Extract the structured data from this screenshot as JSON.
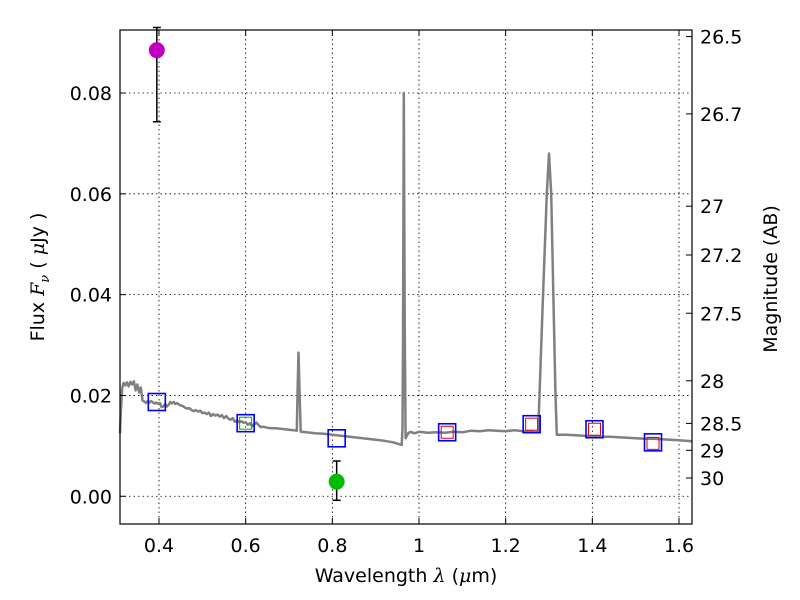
{
  "chart_data": {
    "type": "line",
    "title": "",
    "xlabel": {
      "prefix": "Wavelength",
      "symbol": "λ",
      "unit_open": "(",
      "unit_mu": "μ",
      "unit_m": "m",
      "unit_close": ")"
    },
    "ylabel": {
      "prefix": "Flux",
      "symbol": "F",
      "symbol_sub": "ν",
      "unit_open": "(",
      "unit_mu": "μ",
      "unit_jy": "Jy",
      "unit_close": ")"
    },
    "y2label": "Magnitude (AB)",
    "xlim": [
      0.31,
      1.63
    ],
    "ylim": [
      -0.0055,
      0.0925
    ],
    "grid": true,
    "x_ticks": [
      {
        "value": 0.4,
        "label": "0.4"
      },
      {
        "value": 0.6,
        "label": "0.6"
      },
      {
        "value": 0.8,
        "label": "0.8"
      },
      {
        "value": 1.0,
        "label": "1"
      },
      {
        "value": 1.2,
        "label": "1.2"
      },
      {
        "value": 1.4,
        "label": "1.4"
      },
      {
        "value": 1.6,
        "label": "1.6"
      }
    ],
    "y_ticks": [
      {
        "value": 0.0,
        "label": "0.00"
      },
      {
        "value": 0.02,
        "label": "0.02"
      },
      {
        "value": 0.04,
        "label": "0.04"
      },
      {
        "value": 0.06,
        "label": "0.06"
      },
      {
        "value": 0.08,
        "label": "0.08"
      }
    ],
    "y2_ticks": [
      {
        "label": "26.5",
        "mag": 26.5
      },
      {
        "label": "26.7",
        "mag": 26.7
      },
      {
        "label": "27",
        "mag": 27
      },
      {
        "label": "27.2",
        "mag": 27.2
      },
      {
        "label": "27.5",
        "mag": 27.5
      },
      {
        "label": "28",
        "mag": 28
      },
      {
        "label": "28.5",
        "mag": 28.5
      },
      {
        "label": "29",
        "mag": 29
      },
      {
        "label": "30",
        "mag": 30
      }
    ],
    "template_spectrum": {
      "name": "model SED",
      "color": "#808080",
      "points": [
        [
          0.31,
          0.0125
        ],
        [
          0.312,
          0.017
        ],
        [
          0.315,
          0.0215
        ],
        [
          0.318,
          0.0225
        ],
        [
          0.322,
          0.022
        ],
        [
          0.326,
          0.0226
        ],
        [
          0.33,
          0.0218
        ],
        [
          0.334,
          0.0227
        ],
        [
          0.338,
          0.0222
        ],
        [
          0.342,
          0.0228
        ],
        [
          0.346,
          0.021
        ],
        [
          0.35,
          0.0222
        ],
        [
          0.354,
          0.0206
        ],
        [
          0.358,
          0.0216
        ],
        [
          0.362,
          0.019
        ],
        [
          0.366,
          0.0188
        ],
        [
          0.37,
          0.0185
        ],
        [
          0.374,
          0.0189
        ],
        [
          0.378,
          0.0186
        ],
        [
          0.382,
          0.0189
        ],
        [
          0.386,
          0.0186
        ],
        [
          0.39,
          0.0184
        ],
        [
          0.394,
          0.0186
        ],
        [
          0.398,
          0.0183
        ],
        [
          0.402,
          0.0185
        ],
        [
          0.406,
          0.0177
        ],
        [
          0.41,
          0.0178
        ],
        [
          0.414,
          0.0183
        ],
        [
          0.418,
          0.0178
        ],
        [
          0.422,
          0.0181
        ],
        [
          0.426,
          0.0187
        ],
        [
          0.43,
          0.0184
        ],
        [
          0.434,
          0.0187
        ],
        [
          0.438,
          0.0183
        ],
        [
          0.442,
          0.0185
        ],
        [
          0.446,
          0.0182
        ],
        [
          0.45,
          0.018
        ],
        [
          0.455,
          0.0179
        ],
        [
          0.46,
          0.0176
        ],
        [
          0.465,
          0.0174
        ],
        [
          0.47,
          0.0175
        ],
        [
          0.475,
          0.0171
        ],
        [
          0.48,
          0.0169
        ],
        [
          0.485,
          0.0171
        ],
        [
          0.49,
          0.0168
        ],
        [
          0.495,
          0.017
        ],
        [
          0.5,
          0.0165
        ],
        [
          0.505,
          0.0166
        ],
        [
          0.51,
          0.0163
        ],
        [
          0.515,
          0.0166
        ],
        [
          0.52,
          0.0159
        ],
        [
          0.525,
          0.0163
        ],
        [
          0.53,
          0.016
        ],
        [
          0.535,
          0.0162
        ],
        [
          0.54,
          0.0158
        ],
        [
          0.545,
          0.0161
        ],
        [
          0.55,
          0.0155
        ],
        [
          0.555,
          0.0159
        ],
        [
          0.56,
          0.0154
        ],
        [
          0.565,
          0.0152
        ],
        [
          0.57,
          0.0155
        ],
        [
          0.575,
          0.0148
        ],
        [
          0.58,
          0.015
        ],
        [
          0.585,
          0.0147
        ],
        [
          0.59,
          0.0149
        ],
        [
          0.595,
          0.0146
        ],
        [
          0.6,
          0.0147
        ],
        [
          0.605,
          0.0142
        ],
        [
          0.61,
          0.0145
        ],
        [
          0.615,
          0.0139
        ],
        [
          0.62,
          0.0143
        ],
        [
          0.625,
          0.0146
        ],
        [
          0.63,
          0.0141
        ],
        [
          0.635,
          0.0137
        ],
        [
          0.64,
          0.0138
        ],
        [
          0.65,
          0.0136
        ],
        [
          0.66,
          0.0135
        ],
        [
          0.67,
          0.0135
        ],
        [
          0.68,
          0.0134
        ],
        [
          0.69,
          0.0133
        ],
        [
          0.7,
          0.0132
        ],
        [
          0.71,
          0.0131
        ],
        [
          0.718,
          0.013
        ],
        [
          0.72,
          0.022
        ],
        [
          0.722,
          0.0285
        ],
        [
          0.724,
          0.022
        ],
        [
          0.727,
          0.0128
        ],
        [
          0.74,
          0.0127
        ],
        [
          0.76,
          0.0125
        ],
        [
          0.78,
          0.0124
        ],
        [
          0.8,
          0.0122
        ],
        [
          0.82,
          0.012
        ],
        [
          0.84,
          0.0118
        ],
        [
          0.86,
          0.0116
        ],
        [
          0.88,
          0.0114
        ],
        [
          0.9,
          0.0112
        ],
        [
          0.92,
          0.011
        ],
        [
          0.94,
          0.0107
        ],
        [
          0.96,
          0.0102
        ],
        [
          0.962,
          0.0135
        ],
        [
          0.963,
          0.03
        ],
        [
          0.965,
          0.08
        ],
        [
          0.967,
          0.035
        ],
        [
          0.969,
          0.0115
        ],
        [
          0.975,
          0.0125
        ],
        [
          0.98,
          0.0128
        ],
        [
          0.99,
          0.0125
        ],
        [
          1.0,
          0.0128
        ],
        [
          1.02,
          0.0126
        ],
        [
          1.04,
          0.0127
        ],
        [
          1.06,
          0.0126
        ],
        [
          1.08,
          0.0128
        ],
        [
          1.1,
          0.0127
        ],
        [
          1.12,
          0.013
        ],
        [
          1.14,
          0.0129
        ],
        [
          1.16,
          0.0131
        ],
        [
          1.18,
          0.013
        ],
        [
          1.2,
          0.0129
        ],
        [
          1.22,
          0.0131
        ],
        [
          1.24,
          0.0129
        ],
        [
          1.26,
          0.0128
        ],
        [
          1.27,
          0.0127
        ],
        [
          1.275,
          0.0128
        ],
        [
          1.285,
          0.037
        ],
        [
          1.295,
          0.06
        ],
        [
          1.3,
          0.068
        ],
        [
          1.305,
          0.06
        ],
        [
          1.315,
          0.02
        ],
        [
          1.318,
          0.0122
        ],
        [
          1.34,
          0.0122
        ],
        [
          1.36,
          0.0121
        ],
        [
          1.38,
          0.012
        ],
        [
          1.4,
          0.0119
        ],
        [
          1.42,
          0.0118
        ],
        [
          1.44,
          0.0118
        ],
        [
          1.46,
          0.0117
        ],
        [
          1.48,
          0.0116
        ],
        [
          1.5,
          0.0115
        ],
        [
          1.52,
          0.0114
        ],
        [
          1.54,
          0.0114
        ],
        [
          1.56,
          0.0113
        ],
        [
          1.58,
          0.0112
        ],
        [
          1.6,
          0.0111
        ],
        [
          1.63,
          0.0109
        ]
      ]
    },
    "model_photometry": {
      "name": "model fluxes",
      "marker": "open-square",
      "color": "#0000ff",
      "points": [
        {
          "x": 0.395,
          "y": 0.0187
        },
        {
          "x": 0.6,
          "y": 0.0145
        },
        {
          "x": 0.81,
          "y": 0.0115
        },
        {
          "x": 1.065,
          "y": 0.0127
        },
        {
          "x": 1.26,
          "y": 0.0143
        },
        {
          "x": 1.405,
          "y": 0.0133
        },
        {
          "x": 1.54,
          "y": 0.0107
        }
      ]
    },
    "observed_photometry": {
      "name": "observed fluxes",
      "marker": "open-square-small",
      "color": "#dd0000",
      "points": [
        {
          "x": 1.065,
          "y": 0.0127
        },
        {
          "x": 1.26,
          "y": 0.0143
        },
        {
          "x": 1.405,
          "y": 0.0133
        },
        {
          "x": 1.54,
          "y": 0.0105
        }
      ]
    },
    "green_marker": {
      "x": 0.6,
      "y": 0.0145,
      "marker": "open-square-small",
      "color": "#00aa00"
    },
    "upper_points": [
      {
        "name": "magenta point",
        "x": 0.395,
        "y": 0.0885,
        "err_low": 0.0142,
        "err_high": 0.0045,
        "color": "#c000c0"
      },
      {
        "name": "green point",
        "x": 0.81,
        "y": 0.0029,
        "err_low": 0.0037,
        "err_high": 0.0041,
        "color": "#00bb00"
      }
    ]
  }
}
